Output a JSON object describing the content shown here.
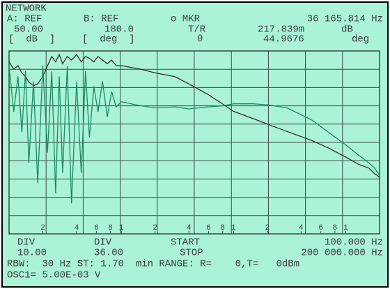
{
  "screen": {
    "header": {
      "mode": "NETWORK",
      "a_ref": "A: REF",
      "b_ref": "B: REF",
      "marker": "o MKR",
      "marker_freq": "36 165.814 Hz",
      "a_value": "50.00",
      "b_value": "180.0",
      "tr": "T/R",
      "tr_value": "217.839m",
      "tr_unit": "dB",
      "a_unit": "[  dB  ]",
      "b_unit": "[  deg  ]",
      "theta": "θ",
      "theta_value": "44.9676",
      "theta_unit": "deg"
    },
    "footer": {
      "a_div": "DIV",
      "b_div": "DIV",
      "start": "START",
      "start_value": "100.000 Hz",
      "a_div_value": "10.00",
      "b_div_value": "36.00",
      "stop": "STOP",
      "stop_value": "200 000.000 Hz",
      "rbw": "RBW:  30 Hz ST: 1.70  min RANGE: R=    0,T=   0dBm",
      "osc": "OSC1= 5.00E-03 V"
    }
  },
  "chart_data": {
    "type": "line",
    "log_x": true,
    "xlim": [
      100,
      200000
    ],
    "xticks": [
      {
        "value": 200,
        "label": "2"
      },
      {
        "value": 400,
        "label": "4"
      },
      {
        "value": 600,
        "label": "6"
      },
      {
        "value": 800,
        "label": "8"
      },
      {
        "value": 1000,
        "label": "1"
      },
      {
        "value": 2000,
        "label": "2"
      },
      {
        "value": 4000,
        "label": "4"
      },
      {
        "value": 6000,
        "label": "6"
      },
      {
        "value": 8000,
        "label": "8"
      },
      {
        "value": 10000,
        "label": "1"
      },
      {
        "value": 20000,
        "label": "2"
      },
      {
        "value": 40000,
        "label": "4"
      },
      {
        "value": 60000,
        "label": "6"
      },
      {
        "value": 80000,
        "label": "8"
      },
      {
        "value": 100000,
        "label": "1"
      }
    ],
    "ylim": [
      -50,
      50
    ],
    "y2lim": [
      -180,
      180
    ],
    "x": [
      100,
      110,
      120,
      130,
      140,
      150,
      165,
      180,
      200,
      220,
      240,
      260,
      280,
      300,
      330,
      360,
      400,
      440,
      480,
      520,
      570,
      620,
      680,
      750,
      820,
      900,
      1000,
      1500,
      2000,
      3000,
      4000,
      6000,
      8000,
      10000,
      15000,
      20000,
      30000,
      50000,
      70000,
      100000,
      130000,
      160000,
      180000,
      200000
    ],
    "series": [
      {
        "color": "#3a2b2b",
        "values": [
          44,
          40,
          42,
          38,
          36,
          33,
          31,
          32,
          36,
          42,
          47,
          44,
          48,
          43,
          47,
          45,
          48,
          44,
          47,
          46,
          44,
          47,
          45,
          43,
          45,
          42,
          42,
          40,
          38,
          36,
          32,
          26,
          21,
          17,
          13,
          10,
          6,
          1,
          -3,
          -8,
          -12,
          -14,
          -17,
          -19
        ]
      },
      {
        "color": "#1b8a62",
        "axis": "y2",
        "values": [
          150,
          60,
          130,
          20,
          140,
          -40,
          120,
          -80,
          150,
          -20,
          140,
          -100,
          130,
          -60,
          150,
          -120,
          120,
          -60,
          140,
          10,
          110,
          60,
          120,
          50,
          100,
          70,
          80,
          72,
          68,
          70,
          66,
          70,
          72,
          76,
          76,
          74,
          68,
          44,
          20,
          -5,
          -25,
          -40,
          -50,
          -65
        ]
      }
    ]
  }
}
